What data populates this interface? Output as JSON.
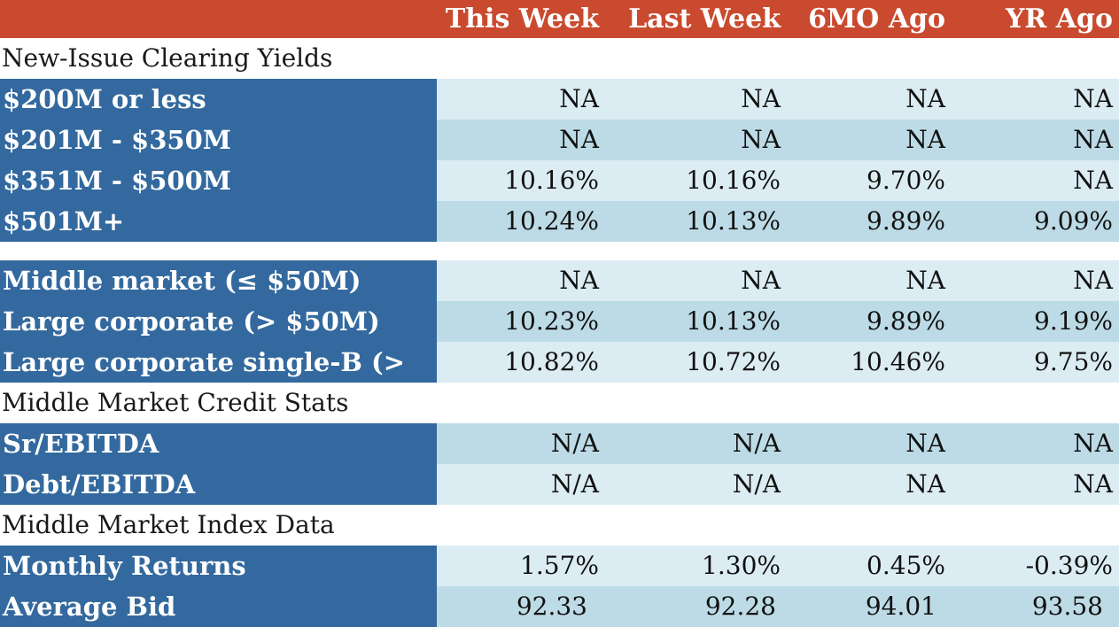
{
  "columns": [
    "This Week",
    "Last Week",
    "6MO Ago",
    "YR Ago"
  ],
  "section_new_issue": "New-Issue Clearing Yields",
  "size_rows": [
    {
      "label": "$200M or less",
      "values": [
        "NA",
        "NA",
        "NA",
        "NA"
      ]
    },
    {
      "label": "$201M - $350M",
      "values": [
        "NA",
        "NA",
        "NA",
        "NA"
      ]
    },
    {
      "label": "$351M - $500M",
      "values": [
        "10.16%",
        "10.16%",
        "9.70%",
        "NA"
      ]
    },
    {
      "label": "$501M+",
      "values": [
        "10.24%",
        "10.13%",
        "9.89%",
        "9.09%"
      ]
    }
  ],
  "market_rows": [
    {
      "label": "Middle market (≤ $50M)",
      "values": [
        "NA",
        "NA",
        "NA",
        "NA"
      ]
    },
    {
      "label": "Large corporate (> $50M)",
      "values": [
        "10.23%",
        "10.13%",
        "9.89%",
        "9.19%"
      ]
    },
    {
      "label": "Large corporate single-B (>",
      "values": [
        "10.82%",
        "10.72%",
        "10.46%",
        "9.75%"
      ]
    }
  ],
  "section_credit": "Middle Market Credit Stats",
  "credit_rows": [
    {
      "label": "Sr/EBITDA",
      "values": [
        "N/A",
        "N/A",
        "NA",
        "NA"
      ]
    },
    {
      "label": "Debt/EBITDA",
      "values": [
        "N/A",
        "N/A",
        "NA",
        "NA"
      ]
    }
  ],
  "section_index": "Middle Market Index Data",
  "index_rows": [
    {
      "label": "Monthly Returns",
      "values": [
        "1.57%",
        "1.30%",
        "0.45%",
        "-0.39%"
      ]
    },
    {
      "label": "Average Bid",
      "values": [
        "92.33",
        "92.28",
        "94.01",
        "93.58"
      ]
    }
  ],
  "colors": {
    "header_bg": "#c94a2e",
    "label_bg": "#33699e",
    "cell_light": "#dcecf3",
    "cell_dark": "#bddbe6"
  }
}
